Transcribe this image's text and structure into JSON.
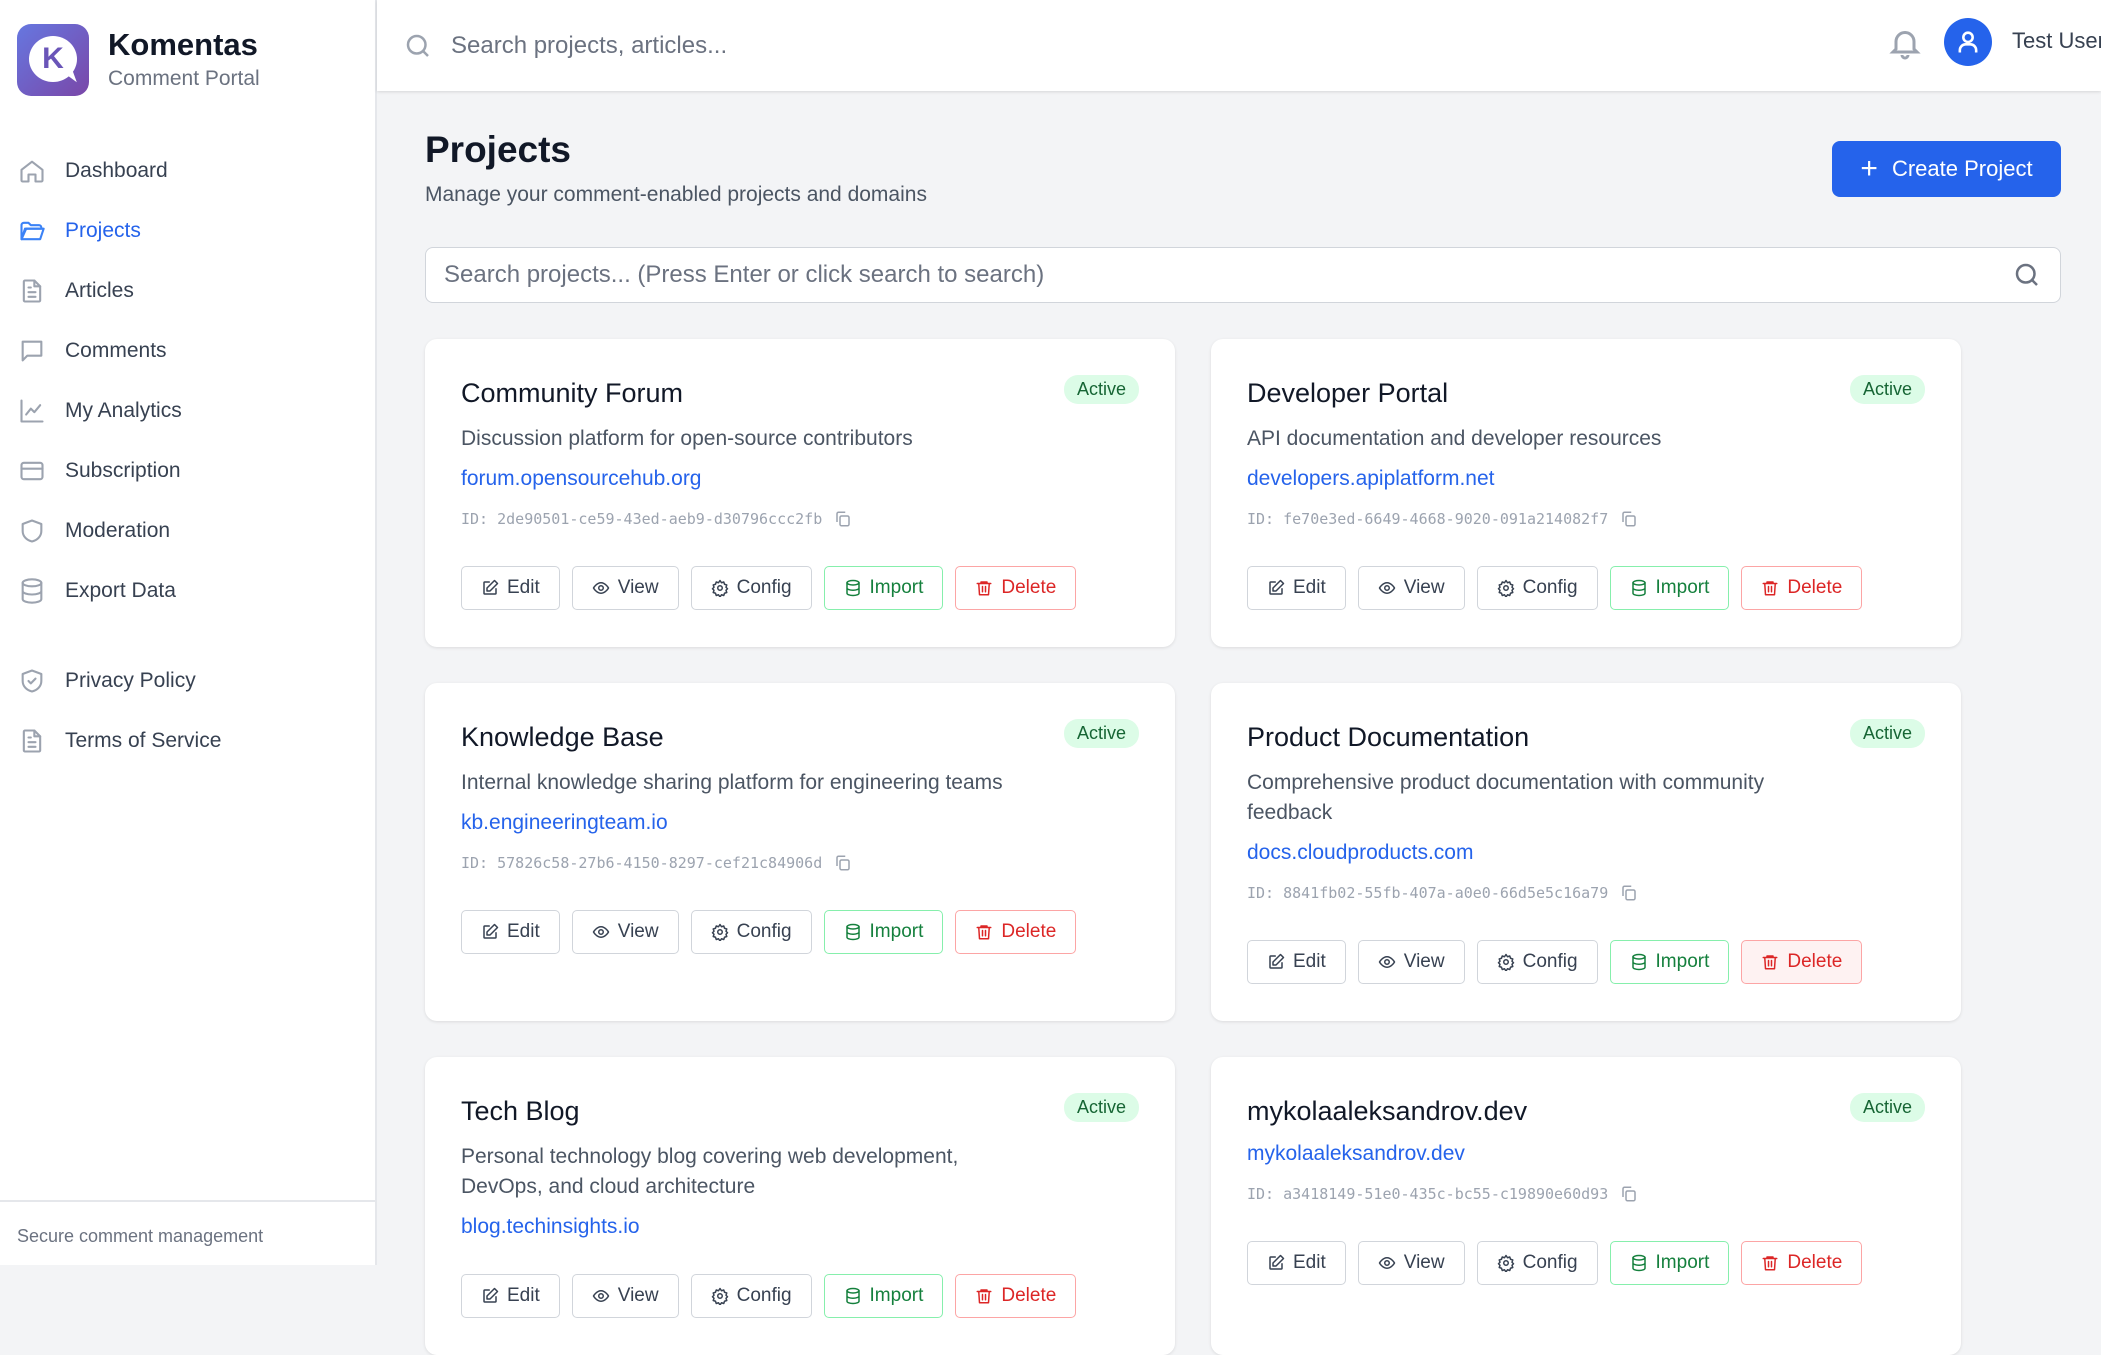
{
  "brand": {
    "title": "Komentas",
    "subtitle": "Comment Portal",
    "logo_letter": "K"
  },
  "sidebar": {
    "items": [
      {
        "label": "Dashboard",
        "icon": "home-icon"
      },
      {
        "label": "Projects",
        "icon": "folder-open-icon",
        "active": true
      },
      {
        "label": "Articles",
        "icon": "file-text-icon"
      },
      {
        "label": "Comments",
        "icon": "message-square-icon"
      },
      {
        "label": "My Analytics",
        "icon": "line-chart-icon"
      },
      {
        "label": "Subscription",
        "icon": "credit-card-icon"
      },
      {
        "label": "Moderation",
        "icon": "shield-icon"
      },
      {
        "label": "Export Data",
        "icon": "database-icon"
      }
    ],
    "legal": [
      {
        "label": "Privacy Policy",
        "icon": "shield-check-icon"
      },
      {
        "label": "Terms of Service",
        "icon": "file-text-icon"
      }
    ],
    "footer": "Secure comment management"
  },
  "topbar": {
    "search_placeholder": "Search projects, articles...",
    "user_name": "Test User"
  },
  "page": {
    "title": "Projects",
    "subtitle": "Manage your comment-enabled projects and domains",
    "create_label": "Create Project",
    "search_placeholder": "Search projects... (Press Enter or click search to search)"
  },
  "actions": {
    "edit": "Edit",
    "view": "View",
    "config": "Config",
    "import": "Import",
    "delete": "Delete"
  },
  "colors": {
    "accent": "#2563eb",
    "active_badge_bg": "#dcfce7",
    "active_badge_text": "#166534",
    "import": "#15803d",
    "delete": "#dc2626"
  },
  "projects": [
    {
      "name": "Community Forum",
      "status": "Active",
      "description": "Discussion platform for open-source contributors",
      "domain": "forum.opensourcehub.org",
      "id": "ID: 2de90501-ce59-43ed-aeb9-d30796ccc2fb"
    },
    {
      "name": "Developer Portal",
      "status": "Active",
      "description": "API documentation and developer resources",
      "domain": "developers.apiplatform.net",
      "id": "ID: fe70e3ed-6649-4668-9020-091a214082f7"
    },
    {
      "name": "Knowledge Base",
      "status": "Active",
      "description": "Internal knowledge sharing platform for engineering teams",
      "domain": "kb.engineeringteam.io",
      "id": "ID: 57826c58-27b6-4150-8297-cef21c84906d"
    },
    {
      "name": "Product Documentation",
      "status": "Active",
      "description": "Comprehensive product documentation with community feedback",
      "domain": "docs.cloudproducts.com",
      "id": "ID: 8841fb02-55fb-407a-a0e0-66d5e5c16a79"
    },
    {
      "name": "Tech Blog",
      "status": "Active",
      "description": "Personal technology blog covering web development, DevOps, and cloud architecture",
      "domain": "blog.techinsights.io"
    },
    {
      "name": "mykolaaleksandrov.dev",
      "status": "Active",
      "domain": "mykolaaleksandrov.dev",
      "id": "ID: a3418149-51e0-435c-bc55-c19890e60d93"
    }
  ]
}
